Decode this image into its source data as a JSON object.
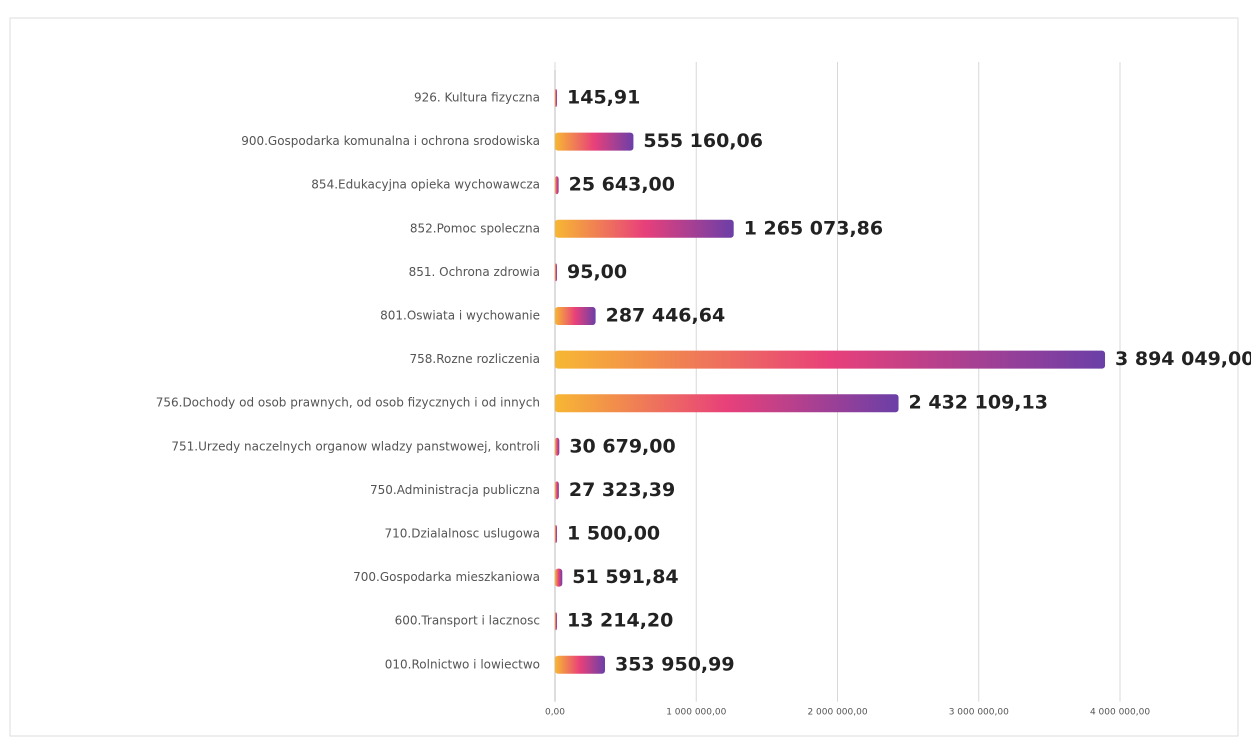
{
  "chart_data": {
    "type": "hbar",
    "categories": [
      "926. Kultura fizyczna",
      "900.Gospodarka komunalna i ochrona srodowiska",
      "854.Edukacyjna opieka wychowawcza",
      "852.Pomoc spoleczna",
      "851. Ochrona zdrowia",
      "801.Oswiata i wychowanie",
      "758.Rozne rozliczenia",
      "756.Dochody od osob prawnych, od osob fizycznych i od innych",
      "751.Urzedy naczelnych organow wladzy panstwowej, kontroli",
      "750.Administracja publiczna",
      "710.Dzialalnosc uslugowa",
      "700.Gospodarka mieszkaniowa",
      "600.Transport i lacznosc",
      "010.Rolnictwo i lowiectwo"
    ],
    "values": [
      145.91,
      555160.06,
      25643,
      1265073.86,
      95,
      287446.64,
      3894049,
      2432109.13,
      30679,
      27323.39,
      1500,
      51591.84,
      13214.2,
      353950.99
    ],
    "value_labels": [
      "145,91",
      "555 160,06",
      "25 643,00",
      "1 265 073,86",
      "95,00",
      "287 446,64",
      "3 894 049,00",
      "2 432 109,13",
      "30 679,00",
      "27 323,39",
      "1 500,00",
      "51 591,84",
      "13 214,20",
      "353 950,99"
    ],
    "colors": [
      "#f7b733",
      "#e8407a",
      "#6b3fa8"
    ],
    "xlim": [
      0,
      4000000
    ],
    "xticks": [
      {
        "value": 0,
        "label": "0,00"
      },
      {
        "value": 1000000,
        "label": "1 000 000,00"
      },
      {
        "value": 2000000,
        "label": "2 000 000,00"
      },
      {
        "value": 3000000,
        "label": "3 000 000,00"
      },
      {
        "value": 4000000,
        "label": "4 000 000,00"
      }
    ],
    "grid": true
  }
}
